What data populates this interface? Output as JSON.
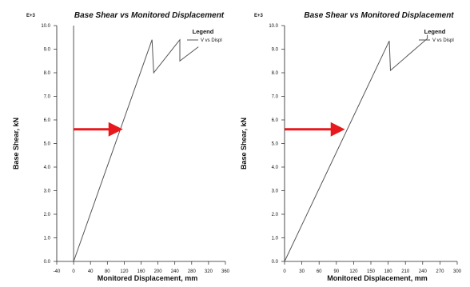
{
  "chart_data": [
    {
      "type": "line",
      "title": "Base Shear vs Monitored Displacement",
      "xlabel": "Monitored Displacement, mm",
      "ylabel": "Base Shear, kN",
      "y_multiplier_label": "E+3",
      "xlim": [
        -40,
        360
      ],
      "ylim": [
        0.0,
        10.0
      ],
      "x_ticks": [
        "-40",
        "0",
        "40",
        "80",
        "120",
        "160",
        "200",
        "240",
        "280",
        "320",
        "360"
      ],
      "y_ticks": [
        "0.0",
        "1.0",
        "2.0",
        "3.0",
        "4.0",
        "5.0",
        "6.0",
        "7.0",
        "8.0",
        "9.0",
        "10.0"
      ],
      "grid": false,
      "legend_title": "Legend",
      "legend_position": "top-right",
      "series": [
        {
          "name": "V vs Displ",
          "x": [
            0,
            0,
            0,
            186,
            190,
            252,
            252,
            296
          ],
          "y": [
            0.0,
            10.0,
            0.0,
            9.4,
            8.0,
            9.4,
            8.5,
            9.1
          ]
        }
      ],
      "annotations": [
        {
          "type": "arrow",
          "x_from": 0,
          "x_to": 118,
          "y": 5.6,
          "color": "#e8191c"
        }
      ]
    },
    {
      "type": "line",
      "title": "Base Shear vs Monitored Displacement",
      "xlabel": "Monitored Displacement, mm",
      "ylabel": "Base Shear, kN",
      "y_multiplier_label": "E+3",
      "xlim": [
        0,
        300
      ],
      "ylim": [
        0.0,
        10.0
      ],
      "x_ticks": [
        "0",
        "30",
        "60",
        "90",
        "120",
        "150",
        "180",
        "210",
        "240",
        "270",
        "300"
      ],
      "y_ticks": [
        "0.0",
        "1.0",
        "2.0",
        "3.0",
        "4.0",
        "5.0",
        "6.0",
        "7.0",
        "8.0",
        "9.0",
        "10.0"
      ],
      "grid": false,
      "legend_title": "Legend",
      "legend_position": "top-right",
      "series": [
        {
          "name": "V vs Displ",
          "x": [
            0,
            182,
            184,
            248,
            248
          ],
          "y": [
            0.0,
            9.35,
            8.1,
            9.45,
            9.6
          ]
        }
      ],
      "annotations": [
        {
          "type": "arrow",
          "x_from": 0,
          "x_to": 106,
          "y": 5.6,
          "color": "#e8191c"
        }
      ]
    }
  ]
}
